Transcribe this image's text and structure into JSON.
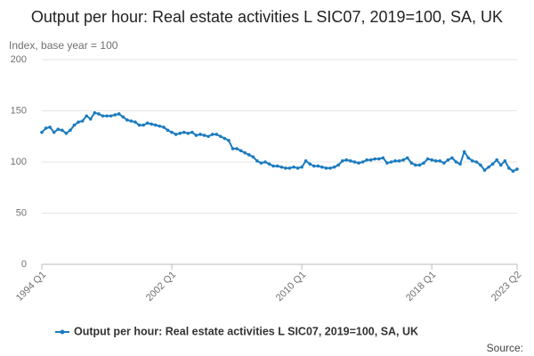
{
  "chart_data": {
    "type": "line",
    "title": "Output per hour: Real estate activities L SIC07, 2019=100, SA, UK",
    "y_label": "Index, base year = 100",
    "source": "Source:",
    "categories": [
      "1994 Q1",
      null,
      null,
      null,
      null,
      null,
      null,
      null,
      null,
      null,
      null,
      null,
      null,
      null,
      null,
      null,
      null,
      null,
      null,
      null,
      null,
      null,
      null,
      null,
      null,
      null,
      null,
      null,
      null,
      null,
      null,
      null,
      "2002 Q1",
      null,
      null,
      null,
      null,
      null,
      null,
      null,
      null,
      null,
      null,
      null,
      null,
      null,
      null,
      null,
      null,
      null,
      null,
      null,
      null,
      null,
      null,
      null,
      null,
      null,
      null,
      null,
      null,
      null,
      null,
      null,
      "2010 Q1",
      null,
      null,
      null,
      null,
      null,
      null,
      null,
      null,
      null,
      null,
      null,
      null,
      null,
      null,
      null,
      null,
      null,
      null,
      null,
      null,
      null,
      null,
      null,
      null,
      null,
      null,
      null,
      null,
      null,
      null,
      null,
      "2018 Q1",
      null,
      null,
      null,
      null,
      null,
      null,
      null,
      null,
      null,
      null,
      null,
      null,
      null,
      null,
      null,
      null,
      null,
      null,
      null,
      null,
      "2023 Q2"
    ],
    "series": [
      {
        "name": "Output per hour: Real estate activities L SIC07, 2019=100, SA, UK",
        "color": "#1b7bbf",
        "values": [
          129,
          133,
          134,
          129,
          132,
          131,
          128,
          131,
          136,
          139,
          140,
          145,
          142,
          148,
          147,
          145,
          145,
          145,
          146,
          147,
          144,
          141,
          140,
          139,
          136,
          136,
          138,
          137,
          136,
          135,
          134,
          131,
          129,
          127,
          128,
          129,
          128,
          129,
          126,
          127,
          126,
          125,
          127,
          127,
          125,
          123,
          121,
          113,
          113,
          111,
          109,
          107,
          105,
          101,
          99,
          100,
          98,
          96,
          96,
          95,
          94,
          94,
          95,
          94,
          95,
          101,
          98,
          96,
          96,
          95,
          94,
          94,
          95,
          97,
          101,
          102,
          101,
          100,
          99,
          100,
          102,
          102,
          103,
          103,
          104,
          99,
          100,
          101,
          101,
          102,
          104,
          99,
          97,
          97,
          99,
          103,
          102,
          101,
          101,
          99,
          102,
          104,
          100,
          98,
          110,
          104,
          101,
          100,
          97,
          92,
          95,
          98,
          102,
          97,
          101,
          94,
          91,
          93
        ]
      }
    ],
    "ylim": [
      0,
      200
    ],
    "yticks": [
      0,
      50,
      100,
      150,
      200
    ],
    "grid": true,
    "legend": "bottom"
  }
}
